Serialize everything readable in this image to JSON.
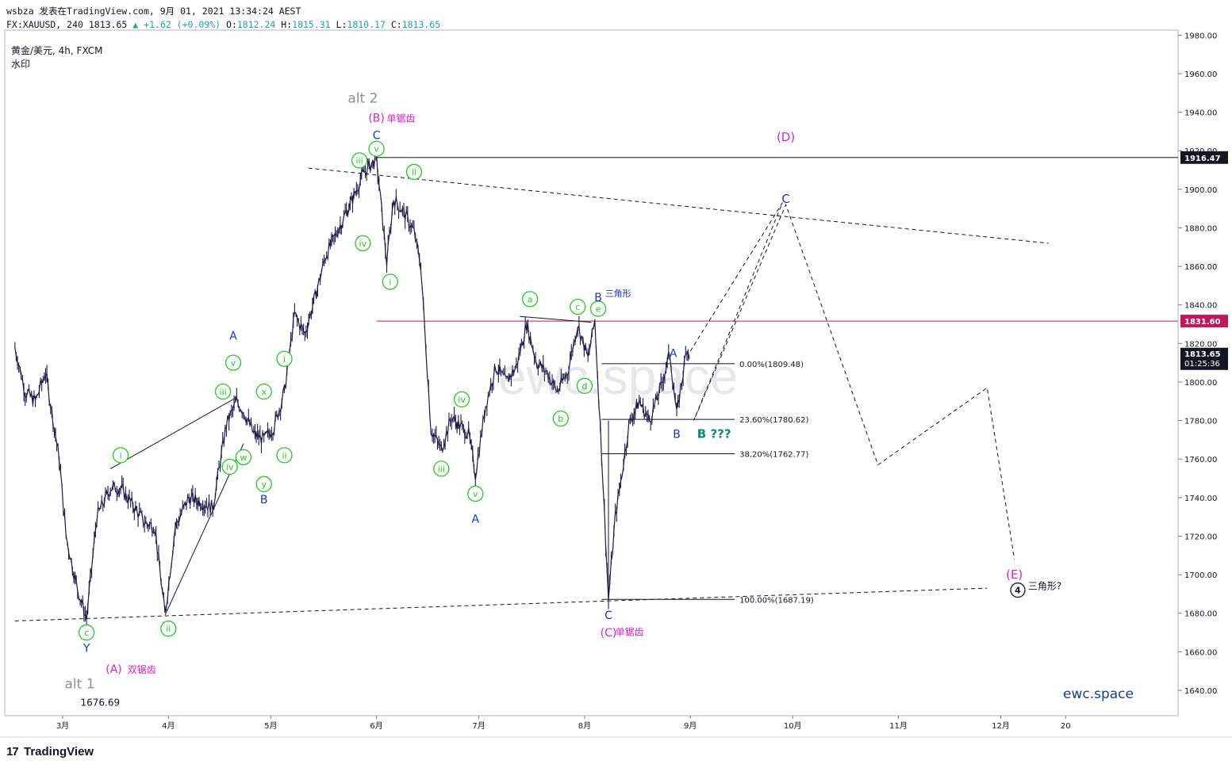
{
  "header": {
    "line1": "wsbza 发表在TradingView.com, 9月 01, 2021 13:34:24 AEST",
    "line2_prefix": "FX:XAUUSD, 240 1813.65",
    "line2_change": "+1.62 (+0.09%)",
    "open_label": "O:",
    "open": "1812.24",
    "high_label": "H:",
    "high": "1815.31",
    "low_label": "L:",
    "low": "1810.17",
    "close_label": "C:",
    "close": "1813.65"
  },
  "symbol_info": {
    "name": "黄金/美元, 4h, FXCM",
    "watermark_note": "水印"
  },
  "watermark": "ewc.space",
  "brand": "ewc.space",
  "footer_logo": "TradingView",
  "colors": {
    "candle": "#1c1a4a",
    "wave_green": "#22cc22",
    "wave_blue": "#1a33cc",
    "wave_magenta": "#e020c8",
    "level_red": "#c2185b",
    "grey_label": "#8a8f99",
    "teal": "#0a8a7a"
  },
  "chart_data": {
    "type": "line",
    "title": "",
    "xlabel": "",
    "ylabel": "",
    "ylim": [
      1622,
      1980
    ],
    "y_ticks": [
      "1980.00",
      "1960.00",
      "1940.00",
      "1920.00",
      "1900.00",
      "1880.00",
      "1860.00",
      "1840.00",
      "1820.00",
      "1800.00",
      "1780.00",
      "1760.00",
      "1740.00",
      "1720.00",
      "1700.00",
      "1680.00",
      "1660.00",
      "1640.00"
    ],
    "x_ticks": [
      "3月",
      "4月",
      "5月",
      "6月",
      "7月",
      "8月",
      "9月",
      "10月",
      "11月",
      "12月",
      "20"
    ],
    "series": [
      {
        "points": [
          [
            "2021-02-15",
            1818
          ],
          [
            "2021-02-18",
            1795
          ],
          [
            "2021-02-21",
            1790
          ],
          [
            "2021-02-24",
            1805
          ],
          [
            "2021-02-28",
            1760
          ],
          [
            "2021-03-02",
            1720
          ],
          [
            "2021-03-05",
            1695
          ],
          [
            "2021-03-08",
            1677
          ],
          [
            "2021-03-11",
            1730
          ],
          [
            "2021-03-15",
            1745
          ],
          [
            "2021-03-18",
            1745
          ],
          [
            "2021-03-22",
            1735
          ],
          [
            "2021-03-25",
            1727
          ],
          [
            "2021-03-28",
            1725
          ],
          [
            "2021-03-31",
            1679
          ],
          [
            "2021-04-03",
            1725
          ],
          [
            "2021-04-07",
            1740
          ],
          [
            "2021-04-10",
            1738
          ],
          [
            "2021-04-14",
            1735
          ],
          [
            "2021-04-18",
            1778
          ],
          [
            "2021-04-21",
            1790
          ],
          [
            "2021-04-23",
            1785
          ],
          [
            "2021-04-26",
            1773
          ],
          [
            "2021-04-29",
            1770
          ],
          [
            "2021-05-02",
            1777
          ],
          [
            "2021-05-05",
            1795
          ],
          [
            "2021-05-08",
            1835
          ],
          [
            "2021-05-11",
            1825
          ],
          [
            "2021-05-14",
            1844
          ],
          [
            "2021-05-17",
            1865
          ],
          [
            "2021-05-21",
            1880
          ],
          [
            "2021-05-25",
            1895
          ],
          [
            "2021-05-28",
            1908
          ],
          [
            "2021-06-01",
            1916
          ],
          [
            "2021-06-04",
            1862
          ],
          [
            "2021-06-06",
            1895
          ],
          [
            "2021-06-09",
            1888
          ],
          [
            "2021-06-12",
            1878
          ],
          [
            "2021-06-14",
            1860
          ],
          [
            "2021-06-17",
            1775
          ],
          [
            "2021-06-20",
            1765
          ],
          [
            "2021-06-23",
            1782
          ],
          [
            "2021-06-25",
            1778
          ],
          [
            "2021-06-28",
            1773
          ],
          [
            "2021-06-30",
            1752
          ],
          [
            "2021-07-03",
            1788
          ],
          [
            "2021-07-06",
            1808
          ],
          [
            "2021-07-09",
            1800
          ],
          [
            "2021-07-12",
            1808
          ],
          [
            "2021-07-15",
            1830
          ],
          [
            "2021-07-18",
            1810
          ],
          [
            "2021-07-21",
            1805
          ],
          [
            "2021-07-24",
            1795
          ],
          [
            "2021-07-27",
            1805
          ],
          [
            "2021-07-30",
            1830
          ],
          [
            "2021-08-02",
            1812
          ],
          [
            "2021-08-04",
            1832
          ],
          [
            "2021-08-06",
            1763
          ],
          [
            "2021-08-08",
            1687
          ],
          [
            "2021-08-10",
            1730
          ],
          [
            "2021-08-12",
            1753
          ],
          [
            "2021-08-14",
            1778
          ],
          [
            "2021-08-17",
            1790
          ],
          [
            "2021-08-20",
            1780
          ],
          [
            "2021-08-23",
            1795
          ],
          [
            "2021-08-26",
            1815
          ],
          [
            "2021-08-28",
            1783
          ],
          [
            "2021-08-31",
            1818
          ],
          [
            "2021-09-01",
            1813.65
          ]
        ]
      }
    ],
    "horizontal_levels": [
      {
        "label": "1916.47",
        "y": 1916.47,
        "color": "#131722"
      },
      {
        "label": "1831.60",
        "y": 1831.6,
        "color": "#c2185b"
      }
    ],
    "current_price": {
      "label": "1813.65",
      "countdown": "01:25:36"
    },
    "fibonacci": [
      {
        "label": "0.00%(1809.48)",
        "y": 1809.48
      },
      {
        "label": "23.60%(1780.62)",
        "y": 1780.62
      },
      {
        "label": "38.20%(1762.77)",
        "y": 1762.77
      },
      {
        "label": "100.00%(1687.19)",
        "y": 1687.19
      }
    ],
    "projection_path_1": [
      [
        "2021-09-01",
        1816
      ],
      [
        "2021-09-28",
        1893
      ],
      [
        "2021-09-02",
        1780
      ],
      [
        "2021-09-29",
        1892
      ],
      [
        "2021-10-26",
        1757
      ],
      [
        "2021-11-27",
        1797
      ],
      [
        "2021-12-05",
        1708
      ]
    ],
    "trendlines": [
      {
        "style": "dashed",
        "from": [
          "2021-05-12",
          1911
        ],
        "to": [
          "2021-12-15",
          1872
        ]
      },
      {
        "style": "dashed",
        "from": [
          "2021-02-15",
          1676
        ],
        "to": [
          "2021-11-27",
          1693
        ]
      }
    ],
    "annotations": {
      "alt2": "alt 2",
      "alt1": "alt 1",
      "low_value": "1676.69",
      "B_paren": "(B)",
      "B_paren_note": "单锯齿",
      "A_paren": "(A)",
      "A_paren_note": "双锯齿",
      "C_paren": "(C)",
      "C_paren_note": "单锯齿",
      "D_paren": "(D)",
      "E_paren": "(E)",
      "four_circle": "4",
      "four_note": "三角形?",
      "B_triangle": "B",
      "B_triangle_note": "三角形",
      "B_question": "B ???",
      "C": "C",
      "Y": "Y",
      "A": "A",
      "B": "B",
      "i": "i",
      "ii": "ii",
      "iii": "iii",
      "iv": "iv",
      "v": "v",
      "w": "w",
      "x": "x",
      "y": "y",
      "a": "a",
      "b": "b",
      "c": "c",
      "d": "d",
      "e": "e"
    }
  }
}
